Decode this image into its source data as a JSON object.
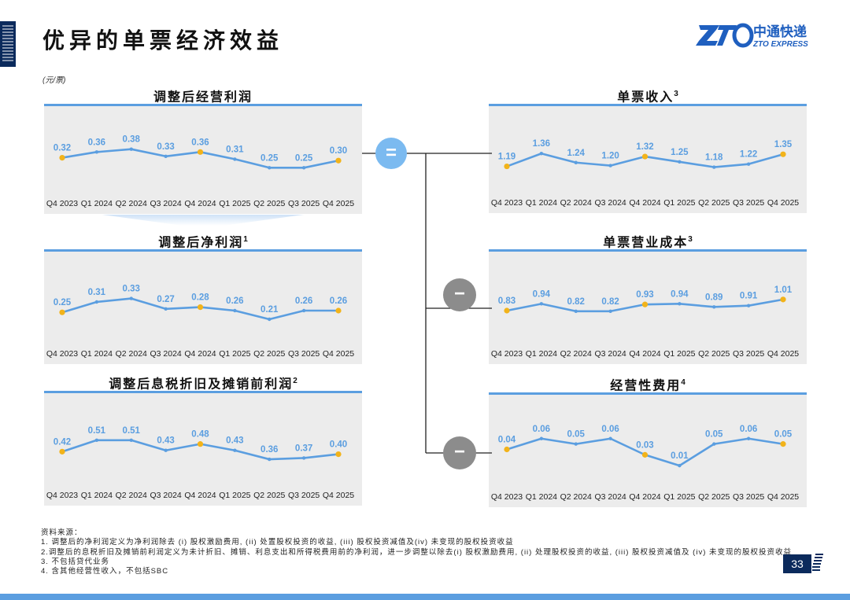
{
  "page": {
    "title": "优异的单票经济效益",
    "unit": "(元/票)",
    "page_number": "33",
    "logo": {
      "cn": "中通快递",
      "en": "ZTO EXPRESS"
    }
  },
  "operators": {
    "equals": "=",
    "minus1": "−",
    "minus2": "−"
  },
  "colors": {
    "accent": "#5b9ee0",
    "marker": "#f2b31a",
    "navy": "#0b2a5c",
    "panel": "#ececec",
    "equals_circle": "#7bbaf0",
    "minus_circle": "#8c8c8c"
  },
  "notes": {
    "heading": "资料来源：",
    "items": [
      "1. 调整后的净利润定义为净利润除去 (i) 股权激励费用, (ii) 处置股权投资的收益, (iii) 股权投资减值及(iv) 未变现的股权投资收益",
      "2.调整后的息税折旧及摊销前利润定义为未计折旧、摊销、利息支出和所得税费用前的净利润，进一步调整以除去(i) 股权激励费用, (ii) 处理股权投资的收益, (iii) 股权投资减值及 (iv) 未变现的股权投资收益",
      "3. 不包括贷代业务",
      "4. 含其他经营性收入，不包括SBC"
    ]
  },
  "chart_data": [
    {
      "type": "line",
      "title": "调整后经营利润",
      "title_sup": "",
      "categories": [
        "Q4 2023",
        "Q1 2024",
        "Q2 2024",
        "Q3 2024",
        "Q4 2024",
        "Q1 2025",
        "Q2 2025",
        "Q3 2025",
        "Q4 2025"
      ],
      "values": [
        0.32,
        0.36,
        0.38,
        0.33,
        0.36,
        0.31,
        0.25,
        0.25,
        0.3
      ],
      "labels": [
        "0.32",
        "0.36",
        "0.38",
        "0.33",
        "0.36",
        "0.31",
        "0.25",
        "0.25",
        "0.30"
      ],
      "highlight": [
        0,
        4,
        8
      ],
      "ylim": [
        0.18,
        0.45
      ]
    },
    {
      "type": "line",
      "title": "调整后净利润",
      "title_sup": "1",
      "categories": [
        "Q4 2023",
        "Q1 2024",
        "Q2 2024",
        "Q3 2024",
        "Q4 2024",
        "Q1 2025",
        "Q2 2025",
        "Q3 2025",
        "Q4 2025"
      ],
      "values": [
        0.25,
        0.31,
        0.33,
        0.27,
        0.28,
        0.26,
        0.21,
        0.26,
        0.26
      ],
      "labels": [
        "0.25",
        "0.31",
        "0.33",
        "0.27",
        "0.28",
        "0.26",
        "0.21",
        "0.26",
        "0.26"
      ],
      "highlight": [
        0,
        4,
        8
      ],
      "ylim": [
        0.16,
        0.41
      ]
    },
    {
      "type": "line",
      "title": "调整后息税折旧及摊销前利润",
      "title_sup": "2",
      "categories": [
        "Q4 2023",
        "Q1 2024",
        "Q2 2024",
        "Q3 2024",
        "Q4 2024",
        "Q1 2025",
        "Q2 2025",
        "Q3 2025",
        "Q4 2025"
      ],
      "values": [
        0.42,
        0.51,
        0.51,
        0.43,
        0.48,
        0.43,
        0.36,
        0.37,
        0.4
      ],
      "labels": [
        "0.42",
        "0.51",
        "0.51",
        "0.43",
        "0.48",
        "0.43",
        "0.36",
        "0.37",
        "0.40"
      ],
      "highlight": [
        0,
        4,
        8
      ],
      "ylim": [
        0.28,
        0.62
      ]
    },
    {
      "type": "line",
      "title": "单票收入",
      "title_sup": "3",
      "categories": [
        "Q4 2023",
        "Q1 2024",
        "Q2 2024",
        "Q3 2024",
        "Q4 2024",
        "Q1 2025",
        "Q2 2025",
        "Q3 2025",
        "Q4 2025"
      ],
      "values": [
        1.19,
        1.36,
        1.24,
        1.2,
        1.32,
        1.25,
        1.18,
        1.22,
        1.35
      ],
      "labels": [
        "1.19",
        "1.36",
        "1.24",
        "1.20",
        "1.32",
        "1.25",
        "1.18",
        "1.22",
        "1.35"
      ],
      "highlight": [
        0,
        4,
        8
      ],
      "ylim": [
        1.05,
        1.55
      ]
    },
    {
      "type": "line",
      "title": "单票营业成本",
      "title_sup": "3",
      "categories": [
        "Q4 2023",
        "Q1 2024",
        "Q2 2024",
        "Q3 2024",
        "Q4 2024",
        "Q1 2025",
        "Q2 2025",
        "Q3 2025",
        "Q4 2025"
      ],
      "values": [
        0.83,
        0.94,
        0.82,
        0.82,
        0.93,
        0.94,
        0.89,
        0.91,
        1.01
      ],
      "labels": [
        "0.83",
        "0.94",
        "0.82",
        "0.82",
        "0.93",
        "0.94",
        "0.89",
        "0.91",
        "1.01"
      ],
      "highlight": [
        0,
        4,
        8
      ],
      "ylim": [
        0.55,
        1.25
      ]
    },
    {
      "type": "line",
      "title": "经营性费用",
      "title_sup": "4",
      "categories": [
        "Q4 2023",
        "Q1 2024",
        "Q2 2024",
        "Q3 2024",
        "Q4 2024",
        "Q1 2025",
        "Q2 2025",
        "Q3 2025",
        "Q4 2025"
      ],
      "values": [
        0.04,
        0.06,
        0.05,
        0.06,
        0.03,
        0.01,
        0.05,
        0.06,
        0.05
      ],
      "labels": [
        "0.04",
        "0.06",
        "0.05",
        "0.06",
        "0.03",
        "0.01",
        "0.05",
        "0.06",
        "0.05"
      ],
      "highlight": [
        0,
        4,
        8
      ],
      "ylim": [
        0.0,
        0.08
      ]
    }
  ]
}
